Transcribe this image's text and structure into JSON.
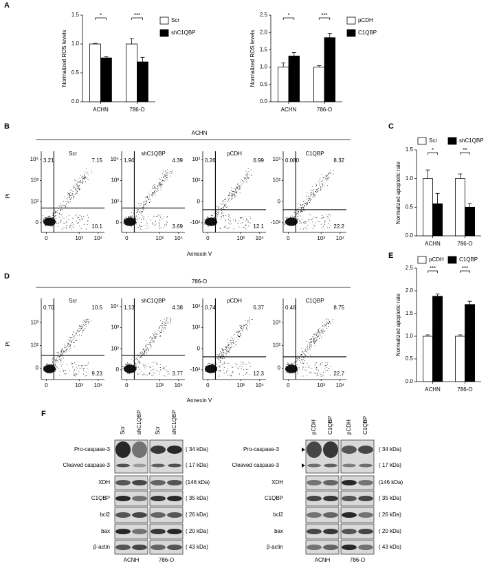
{
  "panel_labels": [
    "A",
    "B",
    "C",
    "D",
    "E",
    "F"
  ],
  "chart_data": [
    {
      "type": "bar",
      "ylabel": "Normalized ROS levels",
      "categories": [
        "ACHN",
        "786-O"
      ],
      "series": [
        {
          "name": "Scr",
          "color": "#ffffff",
          "values": [
            1.0,
            1.0
          ],
          "errors": [
            0.01,
            0.09
          ]
        },
        {
          "name": "shC1QBP",
          "color": "#000000",
          "values": [
            0.76,
            0.69
          ],
          "errors": [
            0.02,
            0.08
          ]
        }
      ],
      "significance": [
        "*",
        "***"
      ],
      "ylim": [
        0,
        1.5
      ],
      "yticks": [
        {
          "value": 0,
          "label": "0.0"
        },
        0.5,
        {
          "value": 1,
          "label": "1.0"
        },
        1.5
      ]
    },
    {
      "type": "bar",
      "ylabel": "Normalized ROS levels",
      "categories": [
        "ACHN",
        "786-O"
      ],
      "series": [
        {
          "name": "pCDH",
          "color": "#ffffff",
          "values": [
            1.0,
            1.0
          ],
          "errors": [
            0.12,
            0.04
          ]
        },
        {
          "name": "C1QBP",
          "color": "#000000",
          "values": [
            1.32,
            1.85
          ],
          "errors": [
            0.1,
            0.12
          ]
        }
      ],
      "significance": [
        "*",
        "***"
      ],
      "ylim": [
        0,
        2.5
      ],
      "yticks": [
        {
          "value": 0,
          "label": "0.0"
        },
        0.5,
        {
          "value": 1,
          "label": "1.0"
        },
        1.5,
        {
          "value": 2,
          "label": "2.0"
        },
        2.5
      ]
    },
    {
      "type": "bar",
      "ylabel": "Normalized apoptotic rate",
      "categories": [
        "ACHN",
        "786-O"
      ],
      "series": [
        {
          "name": "Scr",
          "color": "#ffffff",
          "values": [
            1.0,
            1.0
          ],
          "errors": [
            0.15,
            0.08
          ]
        },
        {
          "name": "shC1QBP",
          "color": "#000000",
          "values": [
            0.56,
            0.5
          ],
          "errors": [
            0.18,
            0.06
          ]
        }
      ],
      "significance": [
        "*",
        "**"
      ],
      "ylim": [
        0,
        1.5
      ],
      "yticks": [
        {
          "value": 0,
          "label": "0.0"
        },
        0.5,
        {
          "value": 1,
          "label": "1.0"
        },
        1.5
      ]
    },
    {
      "type": "bar",
      "ylabel": "Normalized apoptotic rate",
      "categories": [
        "ACHN",
        "786-O"
      ],
      "series": [
        {
          "name": "pCDH",
          "color": "#ffffff",
          "values": [
            1.0,
            1.0
          ],
          "errors": [
            0.03,
            0.03
          ]
        },
        {
          "name": "C1QBP",
          "color": "#000000",
          "values": [
            1.88,
            1.7
          ],
          "errors": [
            0.05,
            0.07
          ]
        }
      ],
      "significance": [
        "***",
        "***"
      ],
      "ylim": [
        0,
        2.5
      ],
      "yticks": [
        {
          "value": 0,
          "label": "0.0"
        },
        0.5,
        {
          "value": 1,
          "label": "1.0"
        },
        1.5,
        {
          "value": 2,
          "label": "2.0"
        },
        2.5
      ]
    }
  ],
  "flow_cytometry": [
    {
      "title": "ACHN",
      "xlabel": "Annexin V",
      "ylabel": "PI",
      "plots": [
        {
          "name": "Scr",
          "upper_left": "3.21",
          "upper_right": "7.15",
          "lower_right": "10.1",
          "xticks": [
            "0",
            "10³",
            "10⁴"
          ],
          "yticks": [
            "10⁴",
            "10³",
            "10²",
            "0"
          ]
        },
        {
          "name": "shC1QBP",
          "upper_left": "1.90",
          "upper_right": "4.39",
          "lower_right": "3.69",
          "xticks": [
            "0",
            "10³",
            "10⁴"
          ],
          "yticks": [
            "10⁴",
            "10³",
            "10²",
            "0"
          ]
        },
        {
          "name": "pCDH",
          "upper_left": "0.26",
          "upper_right": "6.99",
          "lower_right": "12.1",
          "xticks": [
            "0",
            "10³",
            "10⁴"
          ],
          "yticks": [
            "10³",
            "10²",
            "0",
            "-10²"
          ]
        },
        {
          "name": "C1QBP",
          "upper_left": "0.080",
          "upper_right": "8.32",
          "lower_right": "22.2",
          "xticks": [
            "0",
            "10³",
            "10⁴"
          ],
          "yticks": [
            "10³",
            "10²",
            "0",
            "-10²"
          ]
        }
      ]
    },
    {
      "title": "786-O",
      "xlabel": "Annexin V",
      "ylabel": "PI",
      "plots": [
        {
          "name": "Scr",
          "upper_left": "0.70",
          "upper_right": "10.5",
          "lower_right": "9.23",
          "xticks": [
            "0",
            "10³",
            "10⁴"
          ],
          "yticks": [
            "10³",
            "10²",
            "0"
          ]
        },
        {
          "name": "shC1QBP",
          "upper_left": "1.13",
          "upper_right": "4.38",
          "lower_right": "3.77",
          "xticks": [
            "0",
            "10³",
            "10⁴"
          ],
          "yticks": [
            "10⁴",
            "10³",
            "10²",
            "0"
          ]
        },
        {
          "name": "pCDH",
          "upper_left": "0.74",
          "upper_right": "6.37",
          "lower_right": "12.3",
          "xticks": [
            "0",
            "10³",
            "10⁴"
          ],
          "yticks": [
            "10³",
            "10²",
            "0",
            "-10²"
          ]
        },
        {
          "name": "C1QBP",
          "upper_left": "0.46",
          "upper_right": "8.75",
          "lower_right": "22.7",
          "xticks": [
            "0",
            "10³",
            "10⁴"
          ],
          "yticks": [
            "10³",
            "10²",
            "0"
          ]
        }
      ]
    }
  ],
  "western_blots": [
    {
      "lanes": [
        "Scr",
        "shC1QBP",
        "Scr",
        "shC1QBP"
      ],
      "groups": [
        "ACNH",
        "786-O"
      ],
      "rows": [
        {
          "label": "Pro-caspase-3",
          "kda": "( 34  kDa)"
        },
        {
          "label": "Cleaved caspase-3",
          "kda": "( 17  kDa)"
        },
        {
          "label": "XDH",
          "kda": "(146 kDa)"
        },
        {
          "label": "C1QBP",
          "kda": "( 35  kDa)"
        },
        {
          "label": "bcl2",
          "kda": "( 26  kDa)"
        },
        {
          "label": "bax",
          "kda": "( 20  kDa)"
        },
        {
          "label": "β-actin",
          "kda": "( 43  kDa)"
        }
      ]
    },
    {
      "lanes": [
        "pCDH",
        "C1QBP",
        "pCDH",
        "C1QBP"
      ],
      "groups": [
        "ACNH",
        "786-O"
      ],
      "rows": [
        {
          "label": "Pro-caspase-3",
          "kda": "( 34  kDa)"
        },
        {
          "label": "Cleaved caspase-3",
          "kda": "( 17  kDa)"
        },
        {
          "label": "XDH",
          "kda": "(146 kDa)"
        },
        {
          "label": "C1QBP",
          "kda": "( 35  kDa)"
        },
        {
          "label": "bcl2",
          "kda": "( 26  kDa)"
        },
        {
          "label": "bax",
          "kda": "( 20  kDa)"
        },
        {
          "label": "β-actin",
          "kda": "( 43  kDa)"
        }
      ]
    }
  ]
}
